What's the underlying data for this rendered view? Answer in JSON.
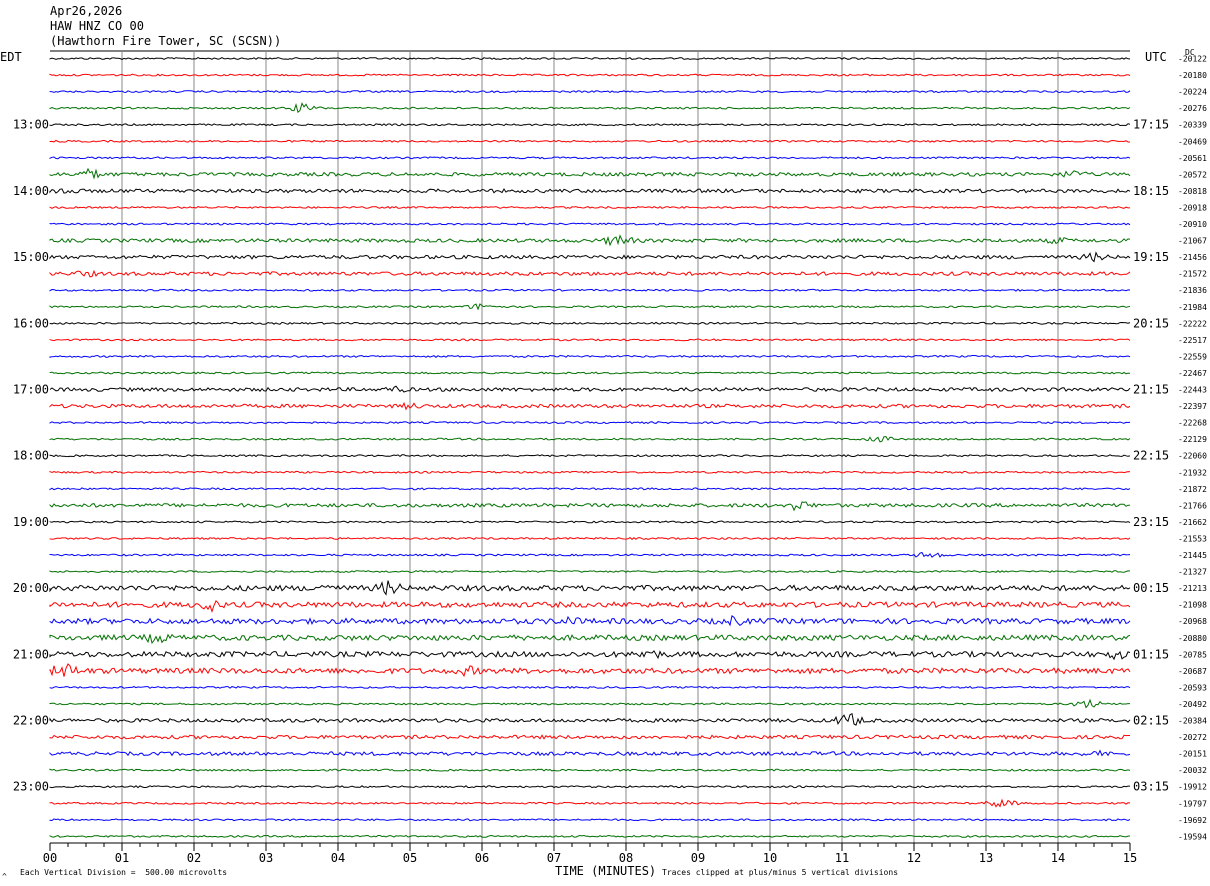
{
  "header": {
    "date": "Apr26,2026",
    "station": "HAW HNZ CO 00",
    "location": "(Hawthorn Fire Tower, SC (SCSN))"
  },
  "left_tz": "EDT",
  "right_tz": "UTC",
  "dc_label": "DC",
  "footer": {
    "scale": "Each Vertical Division =  500.00 microvolts",
    "xlabel": "TIME (MINUTES)",
    "clip": "Traces clipped at plus/minus 5 vertical divisions",
    "mark": "^"
  },
  "colors": [
    "#000000",
    "#ff0000",
    "#0000ff",
    "#007000"
  ],
  "chart_data": {
    "type": "line",
    "title": "",
    "xlabel": "TIME (MINUTES)",
    "xlim": [
      0,
      15
    ],
    "x_ticks": [
      "00",
      "01",
      "02",
      "03",
      "04",
      "05",
      "06",
      "07",
      "08",
      "09",
      "10",
      "11",
      "12",
      "13",
      "14",
      "15"
    ],
    "edt_hour_labels": [
      "13:00",
      "14:00",
      "15:00",
      "16:00",
      "17:00",
      "18:00",
      "19:00",
      "20:00",
      "21:00",
      "22:00",
      "23:00"
    ],
    "utc_hour_labels": [
      "17:15",
      "18:15",
      "19:15",
      "20:15",
      "21:15",
      "22:15",
      "23:15",
      "00:15",
      "01:15",
      "02:15",
      "03:15"
    ],
    "dc_offsets": [
      "-20122",
      "-20180",
      "-20224",
      "-20276",
      "-20339",
      "-20469",
      "-20561",
      "-20572",
      "-20818",
      "-20918",
      "-20910",
      "-21067",
      "-21456",
      "-21572",
      "-21836",
      "-21984",
      "-22222",
      "-22517",
      "-22559",
      "-22467",
      "-22443",
      "-22397",
      "-22268",
      "-22129",
      "-22060",
      "-21932",
      "-21872",
      "-21766",
      "-21662",
      "-21553",
      "-21445",
      "-21327",
      "-21213",
      "-21098",
      "-20968",
      "-20880",
      "-20785",
      "-20687",
      "-20593",
      "-20492",
      "-20384",
      "-20272",
      "-20151",
      "-20032",
      "-19912",
      "-19797",
      "-19692",
      "-19594"
    ],
    "trace_amplitude": [
      1,
      1,
      1,
      1,
      1,
      1,
      1,
      2,
      2,
      1,
      1,
      2,
      2,
      2,
      1,
      1,
      1,
      1,
      1,
      1,
      2,
      2,
      1,
      1,
      1,
      1,
      1,
      2,
      1,
      1,
      1,
      1,
      3,
      3,
      3,
      3,
      3,
      3,
      1,
      1,
      2,
      2,
      2,
      1,
      1,
      1,
      1,
      1
    ],
    "events": [
      {
        "trace": 3,
        "minute": 3.5,
        "amp": 5
      },
      {
        "trace": 7,
        "minute": 0.55,
        "amp": 6
      },
      {
        "trace": 7,
        "minute": 14.2,
        "amp": 5
      },
      {
        "trace": 8,
        "minute": 0.2,
        "amp": 5
      },
      {
        "trace": 11,
        "minute": 7.9,
        "amp": 7
      },
      {
        "trace": 11,
        "minute": 14.0,
        "amp": 4
      },
      {
        "trace": 12,
        "minute": 14.5,
        "amp": 5
      },
      {
        "trace": 13,
        "minute": 0.5,
        "amp": 4
      },
      {
        "trace": 15,
        "minute": 6.0,
        "amp": 4
      },
      {
        "trace": 20,
        "minute": 4.8,
        "amp": 4
      },
      {
        "trace": 21,
        "minute": 5.0,
        "amp": 4
      },
      {
        "trace": 23,
        "minute": 11.5,
        "amp": 4
      },
      {
        "trace": 27,
        "minute": 10.4,
        "amp": 6
      },
      {
        "trace": 30,
        "minute": 12.2,
        "amp": 4
      },
      {
        "trace": 32,
        "minute": 3.8,
        "amp": 6
      },
      {
        "trace": 32,
        "minute": 4.7,
        "amp": 8
      },
      {
        "trace": 33,
        "minute": 2.2,
        "amp": 8
      },
      {
        "trace": 34,
        "minute": 7.2,
        "amp": 6
      },
      {
        "trace": 34,
        "minute": 9.5,
        "amp": 6
      },
      {
        "trace": 35,
        "minute": 1.5,
        "amp": 7
      },
      {
        "trace": 36,
        "minute": 8.3,
        "amp": 7
      },
      {
        "trace": 36,
        "minute": 14.8,
        "amp": 6
      },
      {
        "trace": 37,
        "minute": 0.2,
        "amp": 9
      },
      {
        "trace": 37,
        "minute": 5.8,
        "amp": 6
      },
      {
        "trace": 39,
        "minute": 14.4,
        "amp": 5
      },
      {
        "trace": 40,
        "minute": 11.1,
        "amp": 8
      },
      {
        "trace": 42,
        "minute": 14.5,
        "amp": 4
      },
      {
        "trace": 45,
        "minute": 13.2,
        "amp": 5
      }
    ]
  }
}
